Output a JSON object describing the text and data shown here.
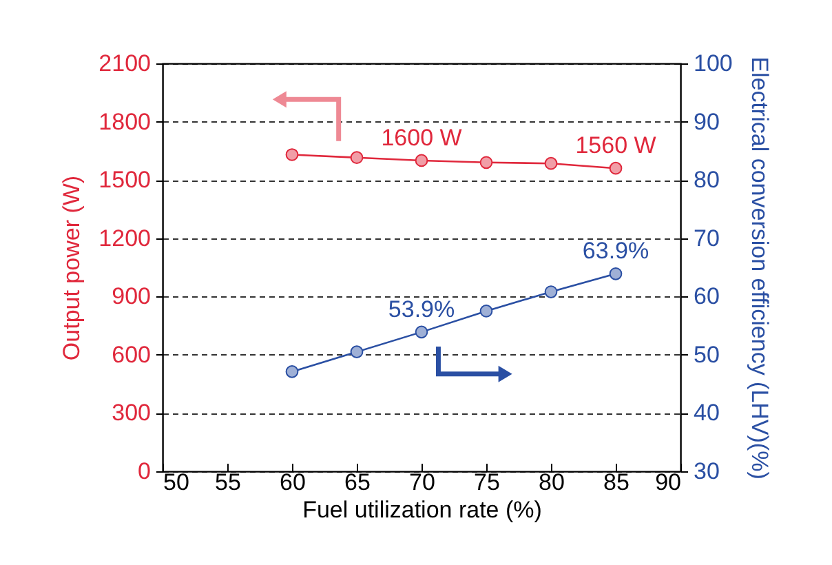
{
  "chart_data": {
    "type": "line",
    "xlabel": "Fuel utilization rate (%)",
    "ylabel": "Output power (W)",
    "y2label": "Electrical conversion efficiency (LHV)(%)",
    "x": [
      60,
      65,
      70,
      75,
      80,
      85
    ],
    "series": [
      {
        "color": "#e0283c",
        "values": [
          1630,
          1615,
          1600,
          1590,
          1585,
          1560
        ],
        "value_labels": [
          null,
          null,
          "1600 W",
          null,
          null,
          "1560 W"
        ]
      },
      {
        "color": "#2a4fa3",
        "axis": "y2",
        "values": [
          47.1,
          50.5,
          53.9,
          57.5,
          60.8,
          63.9
        ],
        "value_labels": [
          null,
          null,
          "53.9%",
          null,
          null,
          "63.9%"
        ]
      }
    ],
    "xlim": [
      50,
      90
    ],
    "xticks": [
      50,
      55,
      60,
      65,
      70,
      75,
      80,
      85,
      90
    ],
    "ylim": [
      0,
      2100
    ],
    "yticks": [
      0,
      300,
      600,
      900,
      1200,
      1500,
      1800,
      2100
    ],
    "y2lim": [
      30,
      100
    ],
    "y2ticks": [
      30,
      40,
      50,
      60,
      70,
      80,
      90,
      100
    ],
    "grid": "y",
    "marker": "circle",
    "line_style": "solid"
  }
}
